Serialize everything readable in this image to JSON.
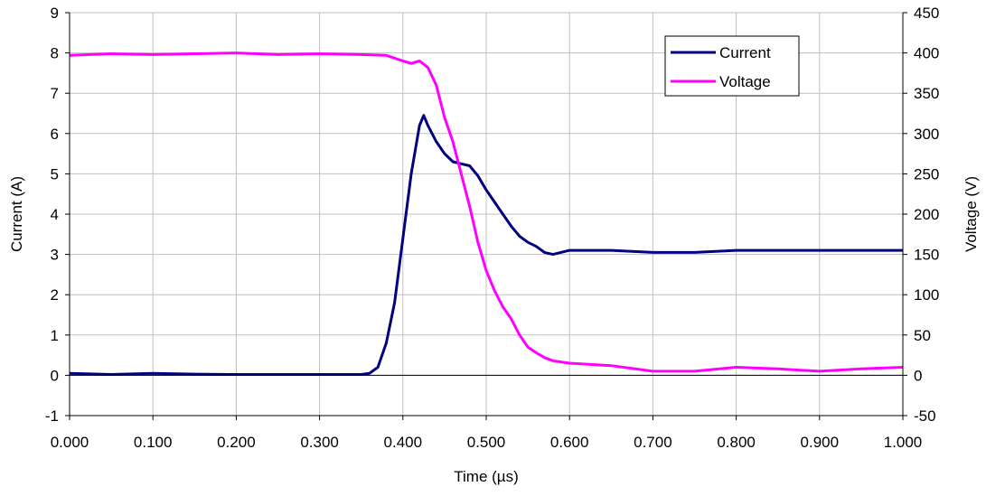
{
  "chart_data": {
    "type": "line",
    "xlabel": "Time (µs)",
    "ylabel_left": "Current (A)",
    "ylabel_right": "Voltage (V)",
    "xlim": [
      0.0,
      1.0
    ],
    "ylim_left": [
      -1,
      9
    ],
    "ylim_right": [
      -50,
      450
    ],
    "x_ticks": [
      "0.000",
      "0.100",
      "0.200",
      "0.300",
      "0.400",
      "0.500",
      "0.600",
      "0.700",
      "0.800",
      "0.900",
      "1.000"
    ],
    "y_ticks_left": [
      "-1",
      "0",
      "1",
      "2",
      "3",
      "4",
      "5",
      "6",
      "7",
      "8",
      "9"
    ],
    "y_ticks_right": [
      "-50",
      "0",
      "50",
      "100",
      "150",
      "200",
      "250",
      "300",
      "350",
      "400",
      "450"
    ],
    "grid": true,
    "legend_position": "top-right",
    "series": [
      {
        "name": "Current",
        "axis": "left",
        "color": "#000080",
        "x": [
          0.0,
          0.05,
          0.1,
          0.15,
          0.2,
          0.25,
          0.3,
          0.35,
          0.36,
          0.37,
          0.38,
          0.39,
          0.4,
          0.41,
          0.42,
          0.425,
          0.43,
          0.44,
          0.45,
          0.46,
          0.47,
          0.48,
          0.49,
          0.5,
          0.51,
          0.52,
          0.53,
          0.54,
          0.55,
          0.56,
          0.57,
          0.58,
          0.6,
          0.65,
          0.7,
          0.75,
          0.8,
          0.85,
          0.9,
          0.95,
          1.0
        ],
        "values": [
          0.05,
          0.02,
          0.05,
          0.03,
          0.02,
          0.02,
          0.02,
          0.02,
          0.05,
          0.2,
          0.8,
          1.8,
          3.4,
          5.0,
          6.2,
          6.45,
          6.2,
          5.8,
          5.5,
          5.3,
          5.25,
          5.2,
          4.95,
          4.6,
          4.3,
          4.0,
          3.7,
          3.45,
          3.3,
          3.2,
          3.05,
          3.0,
          3.1,
          3.1,
          3.05,
          3.05,
          3.1,
          3.1,
          3.1,
          3.1,
          3.1
        ]
      },
      {
        "name": "Voltage",
        "axis": "right",
        "color": "#FF00FF",
        "x": [
          0.0,
          0.05,
          0.1,
          0.15,
          0.2,
          0.25,
          0.3,
          0.35,
          0.38,
          0.4,
          0.41,
          0.42,
          0.43,
          0.44,
          0.45,
          0.46,
          0.47,
          0.48,
          0.49,
          0.5,
          0.51,
          0.52,
          0.53,
          0.54,
          0.55,
          0.56,
          0.57,
          0.58,
          0.6,
          0.65,
          0.7,
          0.75,
          0.8,
          0.85,
          0.9,
          0.95,
          1.0
        ],
        "values": [
          397,
          399,
          398,
          399,
          400,
          398,
          399,
          398,
          397,
          390,
          387,
          390,
          382,
          360,
          320,
          290,
          250,
          210,
          165,
          130,
          105,
          85,
          70,
          50,
          35,
          28,
          22,
          18,
          15,
          12,
          5,
          5,
          10,
          8,
          5,
          8,
          10
        ]
      }
    ]
  }
}
